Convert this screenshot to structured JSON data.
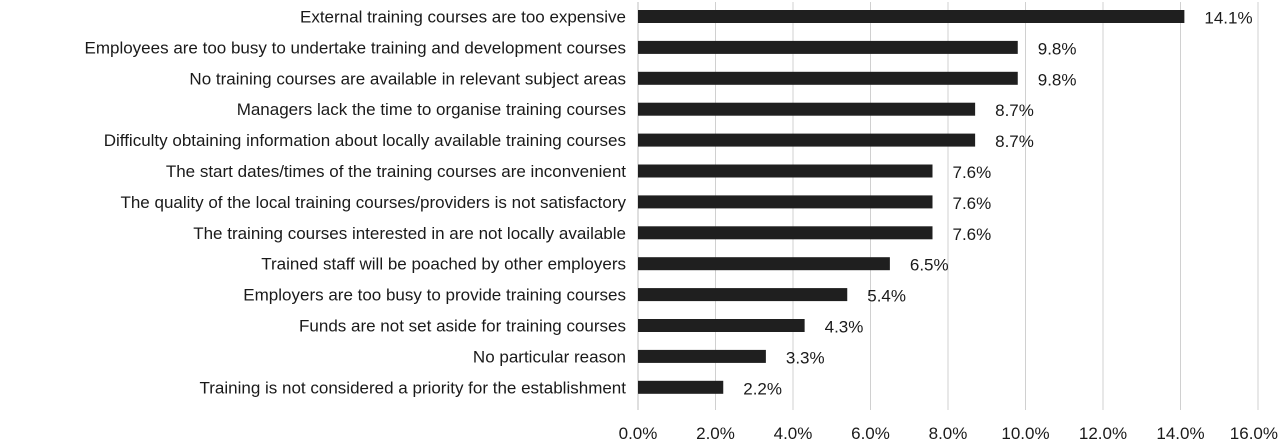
{
  "chart_data": {
    "type": "bar",
    "orientation": "horizontal",
    "categories": [
      "External training courses are too expensive",
      "Employees are too busy to undertake training and development courses",
      "No training courses are available in relevant subject areas",
      "Managers lack the time to organise training courses",
      "Difficulty obtaining information about locally available training courses",
      "The start dates/times of the training courses are inconvenient",
      "The quality of the local training courses/providers is not satisfactory",
      "The training courses interested in are not locally available",
      "Trained staff will be poached by other employers",
      "Employers are too busy to provide training courses",
      "Funds are not set aside for training courses",
      "No particular reason",
      "Training is not considered a priority for the establishment"
    ],
    "values": [
      14.1,
      9.8,
      9.8,
      8.7,
      8.7,
      7.6,
      7.6,
      7.6,
      6.5,
      5.4,
      4.3,
      3.3,
      2.2
    ],
    "value_labels": [
      "14.1%",
      "9.8%",
      "9.8%",
      "8.7%",
      "8.7%",
      "7.6%",
      "7.6%",
      "7.6%",
      "6.5%",
      "5.4%",
      "4.3%",
      "3.3%",
      "2.2%"
    ],
    "xlim": [
      0,
      16
    ],
    "x_ticks": [
      0,
      2,
      4,
      6,
      8,
      10,
      12,
      14,
      16
    ],
    "x_tick_labels": [
      "0.0%",
      "2.0%",
      "4.0%",
      "6.0%",
      "8.0%",
      "10.0%",
      "12.0%",
      "14.0%",
      "16.0%"
    ],
    "grid": true,
    "bar_color": "#1f1f1f",
    "title": "",
    "xlabel": "",
    "ylabel": ""
  }
}
